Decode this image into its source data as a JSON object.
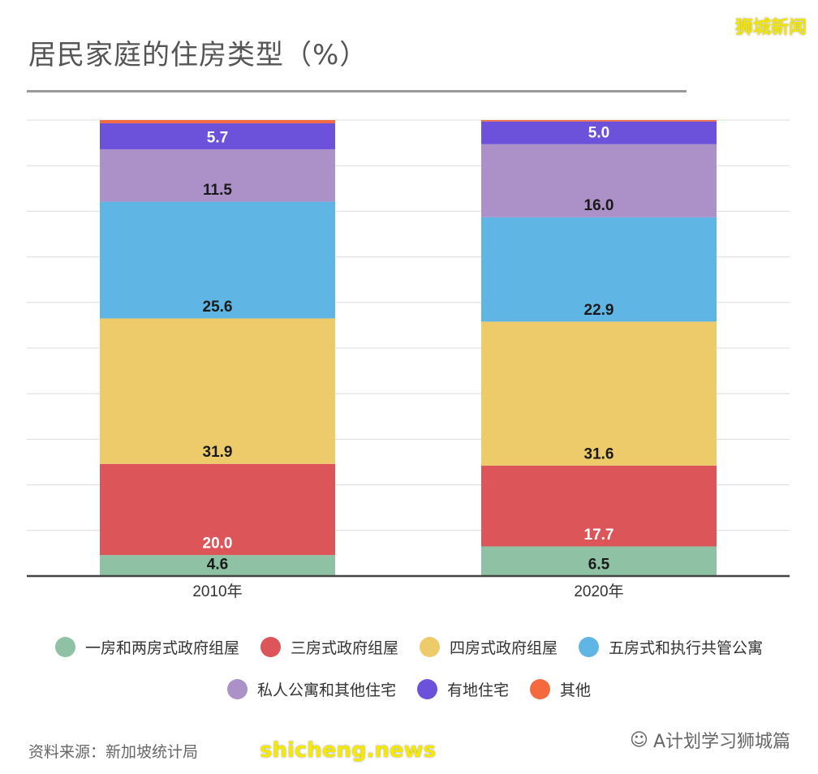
{
  "title": "居民家庭的住房类型（%）",
  "watermark": "狮城新闻",
  "source": "资料来源：新加坡统计局",
  "wechat_account": "A计划学习狮城篇",
  "site_watermark": "shicheng.news",
  "chart_data": {
    "type": "bar",
    "stacked": true,
    "title": "居民家庭的住房类型（%）",
    "categories": [
      "2010年",
      "2020年"
    ],
    "ylim": [
      0,
      100
    ],
    "grid": true,
    "legend_position": "bottom",
    "series": [
      {
        "name": "一房和两房式政府组屋",
        "values": [
          4.6,
          6.5
        ],
        "color": "#8fc1a5",
        "label_color": "#1a1a1a"
      },
      {
        "name": "三房式政府组屋",
        "values": [
          20.0,
          17.7
        ],
        "color": "#dc5558",
        "label_color": "#ffffff"
      },
      {
        "name": "四房式政府组屋",
        "values": [
          31.9,
          31.6
        ],
        "color": "#eecb6a",
        "label_color": "#1a1a1a"
      },
      {
        "name": "五房式和执行共管公寓",
        "values": [
          25.6,
          22.9
        ],
        "color": "#5fb5e3",
        "label_color": "#1a1a1a"
      },
      {
        "name": "私人公寓和其他住宅",
        "values": [
          11.5,
          16.0
        ],
        "color": "#ab91c7",
        "label_color": "#1a1a1a"
      },
      {
        "name": "有地住宅",
        "values": [
          5.7,
          5.0
        ],
        "color": "#6c52da",
        "label_color": "#ffffff"
      },
      {
        "name": "其他",
        "values": [
          0.7,
          0.3
        ],
        "color": "#f4693d",
        "label_color": null
      }
    ]
  }
}
